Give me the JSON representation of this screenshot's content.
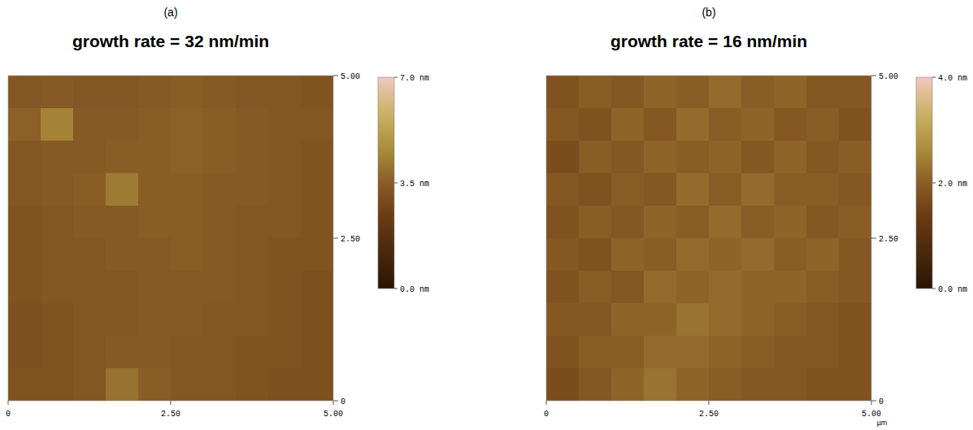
{
  "chart_data": [
    {
      "type": "heatmap",
      "panel_label": "(a)",
      "title": "growth rate = 32 nm/min",
      "xlim": [
        0,
        5
      ],
      "xticks": [
        0,
        {
          "value": 2.5,
          "label": "2.50"
        },
        {
          "value": 5,
          "label": "5.00"
        }
      ],
      "ylim": [
        0,
        5
      ],
      "yticks": [
        0,
        {
          "value": 2.5,
          "label": "2.50"
        },
        {
          "value": 5,
          "label": "5.00"
        }
      ],
      "cells": [
        [
          3.3,
          3.4,
          3.3,
          3.3,
          3.4,
          3.5,
          3.4,
          3.3,
          3.3,
          3.2
        ],
        [
          3.6,
          4.4,
          3.4,
          3.4,
          3.5,
          3.6,
          3.5,
          3.4,
          3.3,
          3.3
        ],
        [
          3.3,
          3.4,
          3.4,
          3.5,
          3.5,
          3.6,
          3.5,
          3.4,
          3.3,
          3.2
        ],
        [
          3.3,
          3.4,
          3.5,
          4.2,
          3.5,
          3.5,
          3.4,
          3.4,
          3.3,
          3.2
        ],
        [
          3.2,
          3.3,
          3.4,
          3.4,
          3.5,
          3.5,
          3.4,
          3.3,
          3.3,
          3.2
        ],
        [
          3.2,
          3.3,
          3.3,
          3.4,
          3.4,
          3.5,
          3.4,
          3.3,
          3.2,
          3.2
        ],
        [
          3.2,
          3.3,
          3.3,
          3.3,
          3.4,
          3.4,
          3.4,
          3.3,
          3.2,
          3.1
        ],
        [
          3.1,
          3.2,
          3.3,
          3.3,
          3.4,
          3.4,
          3.3,
          3.3,
          3.2,
          3.1
        ],
        [
          3.1,
          3.2,
          3.3,
          3.4,
          3.4,
          3.3,
          3.3,
          3.2,
          3.2,
          3.1
        ],
        [
          3.2,
          3.2,
          3.3,
          4.0,
          3.5,
          3.3,
          3.3,
          3.2,
          3.1,
          3.1
        ]
      ],
      "colorbar_range": [
        0,
        7
      ],
      "colorbar_ticks": [
        {
          "value": 0,
          "label": "0.0 nm"
        },
        {
          "value": 3.5,
          "label": "3.5 nm"
        },
        {
          "value": 7,
          "label": "7.0 nm"
        }
      ]
    },
    {
      "type": "heatmap",
      "panel_label": "(b)",
      "title": "growth rate = 16 nm/min",
      "x_label": "µm",
      "xlim": [
        0,
        5
      ],
      "xticks": [
        0,
        {
          "value": 2.5,
          "label": "2.50"
        },
        {
          "value": 5,
          "label": "5.00"
        }
      ],
      "ylim": [
        0,
        5
      ],
      "yticks": [
        0,
        {
          "value": 2.5,
          "label": "2.50"
        },
        {
          "value": 5,
          "label": "5.00"
        }
      ],
      "cells": [
        [
          1.8,
          2.0,
          1.9,
          2.1,
          2.0,
          2.2,
          2.0,
          2.1,
          1.9,
          1.9
        ],
        [
          1.9,
          1.8,
          2.1,
          1.9,
          2.2,
          2.0,
          2.1,
          1.9,
          2.0,
          1.8
        ],
        [
          1.7,
          2.0,
          1.9,
          2.1,
          2.0,
          2.1,
          1.9,
          2.1,
          1.9,
          2.0
        ],
        [
          1.9,
          1.8,
          2.0,
          1.9,
          2.2,
          2.0,
          2.2,
          2.0,
          2.0,
          1.9
        ],
        [
          1.8,
          2.0,
          1.9,
          2.1,
          2.0,
          2.2,
          2.0,
          2.1,
          1.9,
          2.0
        ],
        [
          1.9,
          1.8,
          2.1,
          2.0,
          2.2,
          2.1,
          2.2,
          2.0,
          2.1,
          1.9
        ],
        [
          1.8,
          2.0,
          1.9,
          2.2,
          2.1,
          2.2,
          2.1,
          2.1,
          2.0,
          1.9
        ],
        [
          1.9,
          1.9,
          2.1,
          2.1,
          2.3,
          2.2,
          2.1,
          2.0,
          1.9,
          1.8
        ],
        [
          1.8,
          2.0,
          2.0,
          2.2,
          2.2,
          2.1,
          2.0,
          1.9,
          1.9,
          1.8
        ],
        [
          1.7,
          1.9,
          2.1,
          2.3,
          2.1,
          2.0,
          1.9,
          1.9,
          1.8,
          1.8
        ]
      ],
      "colorbar_range": [
        0,
        4
      ],
      "colorbar_ticks": [
        {
          "value": 0,
          "label": "0.0 nm"
        },
        {
          "value": 2,
          "label": "2.0 nm"
        },
        {
          "value": 4,
          "label": "4.0 nm"
        }
      ]
    }
  ]
}
